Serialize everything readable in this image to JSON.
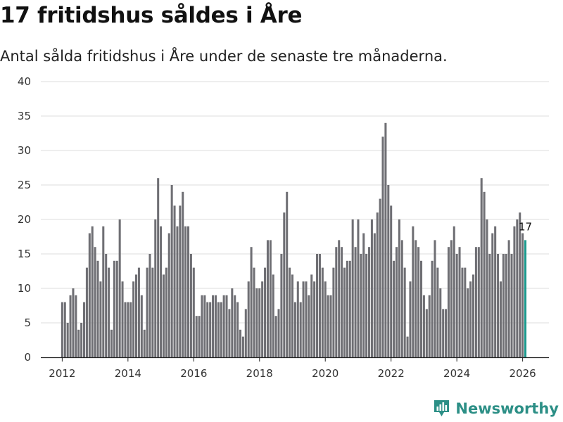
{
  "page": {
    "title": "17 fritidshus såldes i Åre",
    "subtitle": "Antal sålda fritidshus i Åre under de senaste tre månaderna.",
    "brand": "Newsworthy"
  },
  "colors": {
    "bar": "#6f6f74",
    "highlight": "#1d9a8e",
    "brand": "#2c8f86"
  },
  "chart_data": {
    "type": "bar",
    "title": "17 fritidshus såldes i Åre",
    "subtitle": "Antal sålda fritidshus i Åre under de senaste tre månaderna.",
    "xlabel": "",
    "ylabel": "",
    "ylim": [
      0,
      40
    ],
    "yticks": [
      0,
      5,
      10,
      15,
      20,
      25,
      30,
      35,
      40
    ],
    "x_start": 2012.0,
    "x_step_months": 1,
    "xlim": [
      2011.35,
      2026.8
    ],
    "xticks": [
      2012,
      2014,
      2016,
      2018,
      2020,
      2022,
      2024,
      2026
    ],
    "values": [
      8,
      8,
      5,
      9,
      10,
      9,
      4,
      5,
      8,
      13,
      18,
      19,
      16,
      14,
      11,
      19,
      15,
      13,
      4,
      14,
      14,
      20,
      11,
      8,
      8,
      8,
      11,
      12,
      13,
      9,
      4,
      13,
      15,
      13,
      20,
      26,
      19,
      12,
      13,
      18,
      25,
      22,
      19,
      22,
      24,
      19,
      19,
      15,
      13,
      6,
      6,
      9,
      9,
      8,
      8,
      9,
      9,
      8,
      8,
      9,
      9,
      7,
      10,
      9,
      8,
      4,
      3,
      7,
      11,
      16,
      13,
      10,
      10,
      11,
      13,
      17,
      17,
      12,
      6,
      7,
      15,
      21,
      24,
      13,
      12,
      8,
      11,
      8,
      11,
      11,
      9,
      12,
      11,
      15,
      15,
      13,
      11,
      9,
      9,
      13,
      16,
      17,
      16,
      13,
      14,
      14,
      20,
      16,
      20,
      15,
      18,
      15,
      16,
      20,
      18,
      21,
      23,
      32,
      34,
      25,
      22,
      14,
      16,
      20,
      17,
      13,
      3,
      11,
      19,
      17,
      16,
      14,
      9,
      7,
      9,
      14,
      17,
      13,
      10,
      7,
      7,
      16,
      17,
      19,
      15,
      16,
      13,
      13,
      10,
      11,
      12,
      16,
      16,
      26,
      24,
      20,
      15,
      18,
      19,
      15,
      11,
      15,
      15,
      17,
      15,
      19,
      20,
      21,
      18,
      17
    ],
    "highlight_index": 169,
    "annotation": {
      "text": "17",
      "index": 169
    }
  }
}
